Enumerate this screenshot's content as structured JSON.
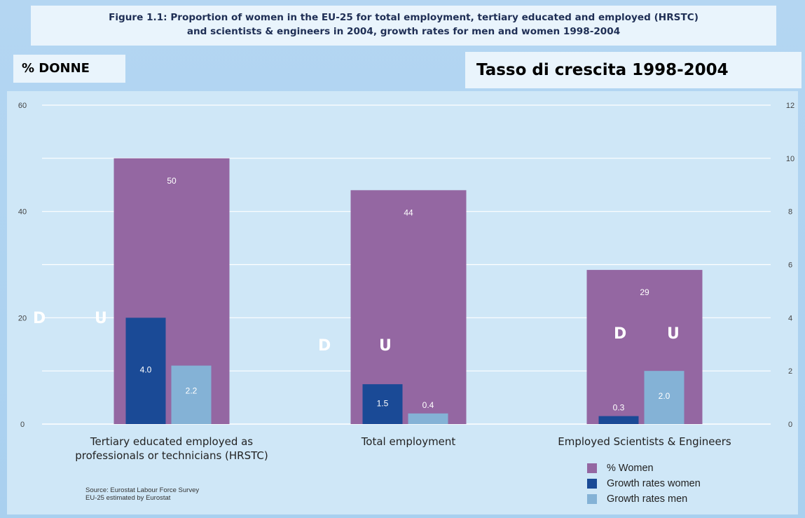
{
  "header": {
    "title_line1": "Figure 1.1: Proportion of women in the EU-25 for total employment, tertiary educated and employed (HRSTC)",
    "title_line2": "and scientists & engineers in 2004, growth rates for men and women 1998-2004"
  },
  "overlay": {
    "left_label": "% DONNE",
    "right_label": "Tasso di crescita 1998-2004",
    "marker_d": "D",
    "marker_u": "U"
  },
  "source": {
    "line1": "Source: Eurostat Labour Force Survey",
    "line2": "EU-25 estimated by Eurostat"
  },
  "colors": {
    "women_pct": "#9467a2",
    "growth_women": "#1a4a96",
    "growth_men": "#84b2d6",
    "gridline": "#ffffff",
    "axis_text": "#444444"
  },
  "chart_data": {
    "type": "bar",
    "categories": [
      "Tertiary educated employed as\nprofessionals or technicians (HRSTC)",
      "Total employment",
      "Employed Scientists & Engineers"
    ],
    "series": [
      {
        "name": "% Women",
        "axis": "left",
        "values": [
          50,
          44,
          29
        ]
      },
      {
        "name": "Growth rates women",
        "axis": "right",
        "values": [
          4.0,
          1.5,
          0.3
        ]
      },
      {
        "name": "Growth rates men",
        "axis": "right",
        "values": [
          2.2,
          0.4,
          2.0
        ]
      }
    ],
    "data_labels": [
      [
        "50",
        "44",
        "29"
      ],
      [
        "4.0",
        "1.5",
        "0.3"
      ],
      [
        "2.2",
        "0.4",
        "2.0"
      ]
    ],
    "ylim_left": [
      0,
      60
    ],
    "yticks_left": [
      "0",
      "20",
      "40",
      "60"
    ],
    "ylim_right": [
      0,
      12
    ],
    "yticks_right": [
      "0",
      "2",
      "4",
      "6",
      "8",
      "10",
      "12"
    ],
    "grid": true,
    "legend_placement": "bottom-right"
  }
}
